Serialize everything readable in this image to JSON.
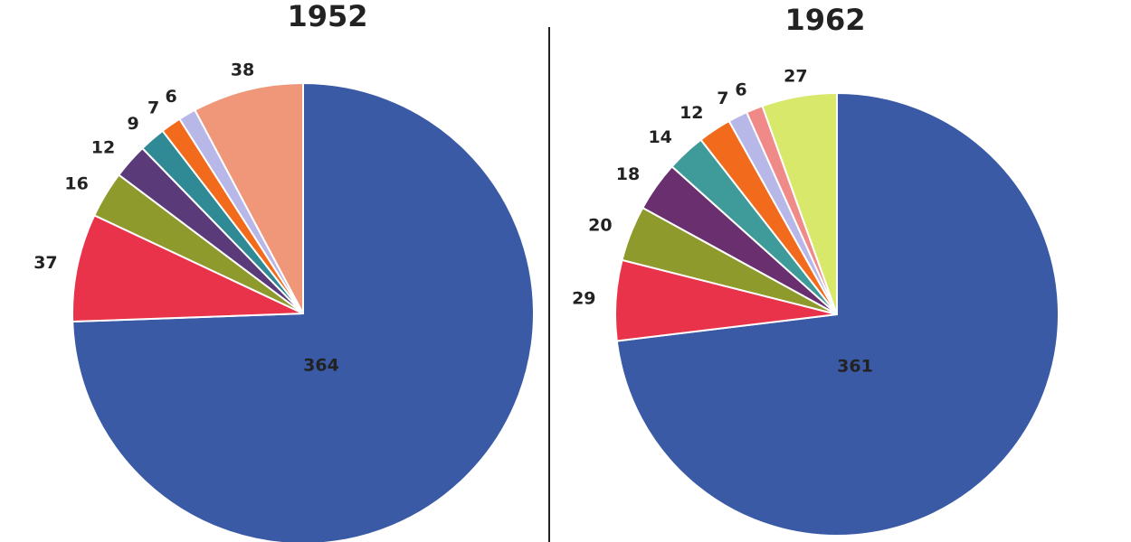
{
  "chart_data": [
    {
      "type": "pie",
      "title": "1952",
      "values": [
        364,
        37,
        16,
        12,
        9,
        7,
        6,
        38
      ],
      "colors": [
        "#3a5aa6",
        "#e8334a",
        "#8f9a2c",
        "#5a3a78",
        "#2f8a96",
        "#f26b1d",
        "#b8b8e8",
        "#f0977a"
      ]
    },
    {
      "type": "pie",
      "title": "1962",
      "values": [
        361,
        29,
        20,
        18,
        14,
        12,
        7,
        6,
        27
      ],
      "colors": [
        "#3a5aa6",
        "#e8334a",
        "#8f9a2c",
        "#6a2f6e",
        "#3f9a9a",
        "#f26b1d",
        "#b8b8e8",
        "#f08a88",
        "#d8e86a"
      ]
    }
  ]
}
